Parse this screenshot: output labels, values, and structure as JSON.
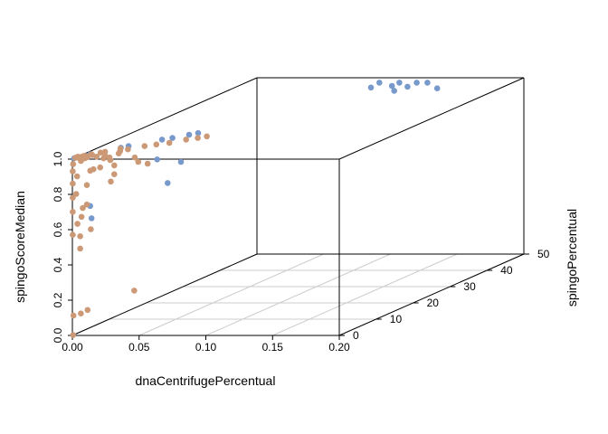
{
  "chart_data": {
    "type": "scatter",
    "projection": "3d-box",
    "xlabel": "dnaCentrifugePercentual",
    "ylabel": "spingoPercentual",
    "zlabel": "spingoScoreMedian",
    "xlim": [
      0,
      0.2
    ],
    "ylim": [
      0,
      50
    ],
    "zlim": [
      0,
      1
    ],
    "x_ticks": [
      "0.00",
      "0.05",
      "0.10",
      "0.15",
      "0.20"
    ],
    "y_ticks": [
      "0",
      "10",
      "20",
      "30",
      "40",
      "50"
    ],
    "z_ticks": [
      "0.0",
      "0.2",
      "0.4",
      "0.6",
      "0.8",
      "1.0"
    ],
    "grid": true,
    "colors": {
      "blue": "#7799cc",
      "tan": "#cc9977"
    },
    "series": [
      {
        "color": "blue",
        "points": [
          [
            0.1,
            47.0,
            1.0
          ],
          [
            0.115,
            47.0,
            1.0
          ],
          [
            0.128,
            47.0,
            1.0
          ],
          [
            0.136,
            47.0,
            1.0
          ],
          [
            0.115,
            45.0,
            1.0
          ],
          [
            0.128,
            44.5,
            1.0
          ],
          [
            0.153,
            43.5,
            1.0
          ],
          [
            0.125,
            42.0,
            1.0
          ],
          [
            0.102,
            44.0,
            1.0
          ],
          [
            0.05,
            16.0,
            1.0
          ],
          [
            0.046,
            15.0,
            1.0
          ],
          [
            0.039,
            13.0,
            1.0
          ],
          [
            0.034,
            12.0,
            1.0
          ],
          [
            0.02,
            8.0,
            1.0
          ],
          [
            0.017,
            7.0,
            1.0
          ],
          [
            0.005,
            3.0,
            1.0
          ],
          [
            0.058,
            2.0,
            0.98
          ],
          [
            0.0,
            0.5,
            1.0
          ],
          [
            0.08,
            0.5,
            0.98
          ],
          [
            0.07,
            0.5,
            0.86
          ],
          [
            0.013,
            0.5,
            0.66
          ],
          [
            0.012,
            0.5,
            0.73
          ]
        ]
      },
      {
        "color": "tan",
        "points": [
          [
            0.0,
            0.2,
            0.0
          ],
          [
            0.0,
            0.3,
            0.11
          ],
          [
            0.005,
            0.5,
            0.12
          ],
          [
            0.01,
            0.5,
            0.14
          ],
          [
            0.045,
            0.5,
            0.25
          ],
          [
            0.005,
            0.3,
            0.49
          ],
          [
            0.005,
            0.3,
            0.56
          ],
          [
            0.003,
            0.3,
            0.63
          ],
          [
            0.006,
            0.3,
            0.67
          ],
          [
            0.01,
            0.3,
            0.74
          ],
          [
            0.002,
            0.3,
            0.8
          ],
          [
            0.01,
            0.3,
            0.85
          ],
          [
            0.028,
            0.3,
            0.87
          ],
          [
            0.003,
            0.2,
            0.9
          ],
          [
            0.012,
            0.5,
            0.93
          ],
          [
            0.02,
            0.3,
            0.95
          ],
          [
            0.03,
            0.5,
            0.96
          ],
          [
            0.0,
            0.2,
            0.97
          ],
          [
            0.005,
            0.5,
            0.985
          ],
          [
            0.008,
            0.5,
            1.0
          ],
          [
            0.022,
            0.5,
            1.0
          ],
          [
            0.027,
            0.5,
            0.99
          ],
          [
            0.048,
            0.5,
            0.98
          ],
          [
            0.055,
            0.5,
            0.97
          ],
          [
            0.0,
            0.1,
            0.93
          ],
          [
            0.0,
            0.1,
            0.86
          ],
          [
            0.0,
            0.1,
            0.78
          ],
          [
            0.0,
            0.1,
            0.7
          ],
          [
            0.0,
            0.1,
            0.57
          ],
          [
            0.015,
            0.3,
            0.94
          ],
          [
            0.03,
            0.5,
            0.91
          ],
          [
            0.007,
            0.3,
            0.72
          ],
          [
            0.013,
            0.3,
            0.6
          ],
          [
            0.012,
            4.5,
            1.0
          ],
          [
            0.025,
            6.0,
            1.0
          ],
          [
            0.032,
            8.0,
            1.0
          ],
          [
            0.038,
            9.0,
            1.0
          ],
          [
            0.045,
            10.0,
            1.0
          ],
          [
            0.052,
            12.0,
            1.0
          ],
          [
            0.058,
            13.0,
            1.0
          ],
          [
            0.062,
            14.0,
            1.0
          ],
          [
            0.018,
            6.5,
            1.0
          ],
          [
            0.005,
            2.0,
            1.0
          ],
          [
            0.003,
            1.5,
            1.0
          ],
          [
            0.008,
            2.5,
            1.0
          ],
          [
            0.0,
            1.0,
            1.0
          ],
          [
            0.001,
            1.0,
            1.0
          ],
          [
            0.002,
            1.2,
            1.0
          ],
          [
            0.0,
            1.5,
            1.0
          ],
          [
            0.003,
            2.0,
            1.0
          ],
          [
            0.006,
            3.0,
            1.0
          ],
          [
            0.01,
            4.0,
            1.0
          ],
          [
            0.022,
            5.0,
            1.0
          ],
          [
            0.0,
            0.8,
            1.0
          ],
          [
            0.004,
            1.0,
            1.0
          ],
          [
            0.008,
            1.2,
            1.0
          ],
          [
            0.014,
            1.5,
            1.0
          ],
          [
            0.019,
            2.0,
            1.0
          ],
          [
            0.025,
            3.5,
            1.0
          ],
          [
            0.044,
            1.0,
            1.0
          ],
          [
            0.025,
            1.0,
            1.0
          ]
        ]
      }
    ]
  }
}
